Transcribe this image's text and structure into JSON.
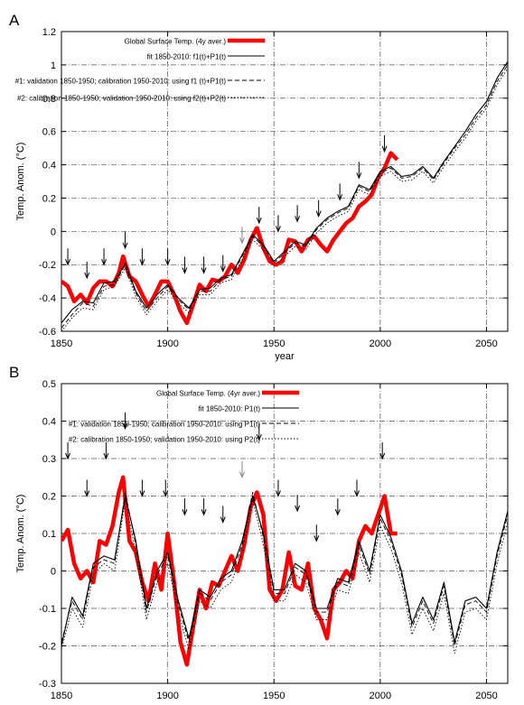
{
  "chart_data": [
    {
      "panel_label": "A",
      "type": "line",
      "xlabel": "year",
      "ylabel": "Temp. Anom. (°C)",
      "xlim": [
        1850,
        2060
      ],
      "ylim": [
        -0.6,
        1.2
      ],
      "xticks": [
        1850,
        1900,
        1950,
        2000,
        2050
      ],
      "yticks": [
        -0.6,
        -0.4,
        -0.2,
        0,
        0.2,
        0.4,
        0.6,
        0.8,
        1,
        1.2
      ],
      "ytick_labels": [
        "-0.6",
        "-0.4",
        "-0.2",
        "0",
        "0.2",
        "0.4",
        "0.6",
        "0.8",
        "1",
        "1.2"
      ],
      "grid": true,
      "legend_position": "top",
      "series": [
        {
          "name": "Global Surface Temp. (4y aver.)",
          "color": "#ff0000",
          "style": "thick",
          "x": [
            1850,
            1853,
            1856,
            1859,
            1862,
            1865,
            1868,
            1871,
            1874,
            1877,
            1879,
            1882,
            1885,
            1888,
            1891,
            1894,
            1897,
            1900,
            1903,
            1906,
            1909,
            1912,
            1915,
            1918,
            1921,
            1924,
            1927,
            1930,
            1933,
            1936,
            1939,
            1942,
            1945,
            1948,
            1951,
            1954,
            1957,
            1960,
            1963,
            1966,
            1969,
            1972,
            1975,
            1978,
            1981,
            1984,
            1987,
            1990,
            1993,
            1996,
            1999,
            2002,
            2005,
            2008
          ],
          "y": [
            -0.3,
            -0.33,
            -0.42,
            -0.38,
            -0.43,
            -0.34,
            -0.3,
            -0.3,
            -0.33,
            -0.25,
            -0.15,
            -0.27,
            -0.3,
            -0.38,
            -0.45,
            -0.38,
            -0.3,
            -0.3,
            -0.38,
            -0.48,
            -0.55,
            -0.44,
            -0.32,
            -0.36,
            -0.29,
            -0.3,
            -0.27,
            -0.2,
            -0.25,
            -0.17,
            -0.05,
            0.02,
            -0.1,
            -0.18,
            -0.2,
            -0.18,
            -0.05,
            -0.06,
            -0.12,
            -0.05,
            -0.03,
            -0.08,
            -0.12,
            -0.05,
            0.0,
            0.05,
            0.08,
            0.15,
            0.18,
            0.22,
            0.32,
            0.38,
            0.47,
            0.43
          ]
        },
        {
          "name": "fit 1850-2010: f1(t)+P1(t)",
          "color": "#000000",
          "style": "solid",
          "x": [
            1850,
            1855,
            1860,
            1865,
            1870,
            1875,
            1880,
            1885,
            1890,
            1895,
            1900,
            1905,
            1910,
            1915,
            1920,
            1925,
            1930,
            1935,
            1940,
            1945,
            1950,
            1955,
            1960,
            1965,
            1970,
            1975,
            1980,
            1985,
            1990,
            1995,
            2000,
            2005,
            2010,
            2015,
            2020,
            2025,
            2030,
            2035,
            2040,
            2045,
            2050,
            2055,
            2060
          ],
          "y": [
            -0.55,
            -0.47,
            -0.42,
            -0.43,
            -0.31,
            -0.3,
            -0.19,
            -0.36,
            -0.46,
            -0.38,
            -0.32,
            -0.4,
            -0.46,
            -0.35,
            -0.34,
            -0.28,
            -0.26,
            -0.14,
            -0.02,
            -0.08,
            -0.18,
            -0.12,
            -0.06,
            -0.08,
            0.02,
            0.08,
            0.12,
            0.15,
            0.28,
            0.25,
            0.36,
            0.39,
            0.33,
            0.34,
            0.39,
            0.32,
            0.42,
            0.51,
            0.6,
            0.7,
            0.78,
            0.92,
            1.02
          ]
        },
        {
          "name": "#1: validation 1850-1950; calibration 1950-2010: using f1 (t)+P1(t)",
          "color": "#000000",
          "style": "dashed",
          "x": [
            1850,
            1855,
            1860,
            1865,
            1870,
            1875,
            1880,
            1885,
            1890,
            1895,
            1900,
            1905,
            1910,
            1915,
            1920,
            1925,
            1930,
            1935,
            1940,
            1945,
            1950,
            1955,
            1960,
            1965,
            1970,
            1975,
            1980,
            1985,
            1990,
            1995,
            2000,
            2005,
            2010,
            2015,
            2020,
            2025,
            2030,
            2035,
            2040,
            2045,
            2050,
            2055,
            2060
          ],
          "y": [
            -0.58,
            -0.5,
            -0.43,
            -0.45,
            -0.33,
            -0.32,
            -0.2,
            -0.37,
            -0.48,
            -0.4,
            -0.33,
            -0.41,
            -0.47,
            -0.36,
            -0.36,
            -0.29,
            -0.27,
            -0.15,
            -0.03,
            -0.09,
            -0.19,
            -0.13,
            -0.07,
            -0.09,
            0.01,
            0.07,
            0.11,
            0.14,
            0.27,
            0.24,
            0.35,
            0.38,
            0.32,
            0.33,
            0.38,
            0.31,
            0.41,
            0.5,
            0.58,
            0.68,
            0.76,
            0.9,
            1.0
          ]
        },
        {
          "name": "#2: calibration 1850-1950; validation 1950-2010: using f2(t)+P2(t)",
          "color": "#000000",
          "style": "dotted",
          "x": [
            1850,
            1855,
            1860,
            1865,
            1870,
            1875,
            1880,
            1885,
            1890,
            1895,
            1900,
            1905,
            1910,
            1915,
            1920,
            1925,
            1930,
            1935,
            1940,
            1945,
            1950,
            1955,
            1960,
            1965,
            1970,
            1975,
            1980,
            1985,
            1990,
            1995,
            2000,
            2005,
            2010,
            2015,
            2020,
            2025,
            2030,
            2035,
            2040,
            2045,
            2050,
            2055,
            2060
          ],
          "y": [
            -0.6,
            -0.52,
            -0.46,
            -0.47,
            -0.35,
            -0.33,
            -0.22,
            -0.39,
            -0.5,
            -0.42,
            -0.35,
            -0.43,
            -0.49,
            -0.38,
            -0.38,
            -0.31,
            -0.29,
            -0.17,
            -0.05,
            -0.11,
            -0.21,
            -0.15,
            -0.09,
            -0.11,
            -0.01,
            0.05,
            0.09,
            0.12,
            0.25,
            0.22,
            0.33,
            0.36,
            0.3,
            0.31,
            0.36,
            0.29,
            0.39,
            0.48,
            0.56,
            0.66,
            0.74,
            0.88,
            0.98
          ]
        }
      ],
      "arrows": [
        {
          "x": 1853,
          "y": -0.2,
          "color": "#000000"
        },
        {
          "x": 1862,
          "y": -0.28,
          "color": "#000000"
        },
        {
          "x": 1870,
          "y": -0.2,
          "color": "#000000"
        },
        {
          "x": 1880,
          "y": -0.1,
          "color": "#000000"
        },
        {
          "x": 1888,
          "y": -0.2,
          "color": "#000000"
        },
        {
          "x": 1900,
          "y": -0.2,
          "color": "#000000"
        },
        {
          "x": 1908,
          "y": -0.25,
          "color": "#000000"
        },
        {
          "x": 1917,
          "y": -0.25,
          "color": "#000000"
        },
        {
          "x": 1926,
          "y": -0.24,
          "color": "#000000"
        },
        {
          "x": 1935,
          "y": -0.07,
          "color": "#888888"
        },
        {
          "x": 1943,
          "y": 0.05,
          "color": "#000000"
        },
        {
          "x": 1952,
          "y": 0.0,
          "color": "#000000"
        },
        {
          "x": 1961,
          "y": 0.06,
          "color": "#000000"
        },
        {
          "x": 1971,
          "y": 0.09,
          "color": "#000000"
        },
        {
          "x": 1981,
          "y": 0.19,
          "color": "#000000"
        },
        {
          "x": 1990,
          "y": 0.32,
          "color": "#000000"
        },
        {
          "x": 2002,
          "y": 0.48,
          "color": "#000000"
        }
      ]
    },
    {
      "panel_label": "B",
      "type": "line",
      "xlabel": "",
      "ylabel": "Temp. Anom. (°C)",
      "xlim": [
        1850,
        2060
      ],
      "ylim": [
        -0.3,
        0.5
      ],
      "xticks": [
        1850,
        1900,
        1950,
        2000,
        2050
      ],
      "yticks": [
        -0.3,
        -0.2,
        -0.1,
        0,
        0.1,
        0.2,
        0.3,
        0.4,
        0.5
      ],
      "ytick_labels": [
        "-0.3",
        "-0.2",
        "-0.1",
        "0",
        "0.1",
        "0.2",
        "0.3",
        "0.4",
        "0.5"
      ],
      "grid": true,
      "legend_position": "top",
      "series": [
        {
          "name": "Global Surface Temp. (4yr aver.)",
          "color": "#ff0000",
          "style": "thick",
          "x": [
            1850,
            1853,
            1856,
            1859,
            1862,
            1865,
            1868,
            1871,
            1874,
            1877,
            1879,
            1882,
            1885,
            1888,
            1891,
            1894,
            1897,
            1900,
            1903,
            1906,
            1909,
            1912,
            1915,
            1918,
            1921,
            1924,
            1927,
            1930,
            1933,
            1936,
            1939,
            1942,
            1945,
            1948,
            1951,
            1954,
            1957,
            1960,
            1963,
            1966,
            1969,
            1972,
            1975,
            1978,
            1981,
            1984,
            1987,
            1990,
            1993,
            1996,
            1999,
            2002,
            2005,
            2008
          ],
          "y": [
            0.08,
            0.11,
            0.02,
            -0.02,
            0.0,
            -0.03,
            0.08,
            0.07,
            0.12,
            0.21,
            0.25,
            0.08,
            0.05,
            -0.03,
            -0.08,
            0.02,
            -0.05,
            0.1,
            -0.03,
            -0.19,
            -0.25,
            -0.15,
            -0.05,
            -0.1,
            -0.03,
            -0.04,
            0.0,
            0.04,
            0.0,
            0.07,
            0.17,
            0.21,
            0.15,
            -0.05,
            -0.08,
            -0.05,
            0.05,
            -0.04,
            -0.05,
            0.02,
            -0.1,
            -0.13,
            -0.18,
            -0.05,
            -0.03,
            0.0,
            -0.02,
            0.08,
            0.12,
            0.1,
            0.15,
            0.2,
            0.1,
            0.1
          ]
        },
        {
          "name": "fit 1850-2010: P1(t)",
          "color": "#000000",
          "style": "solid",
          "x": [
            1850,
            1855,
            1860,
            1865,
            1870,
            1875,
            1880,
            1885,
            1890,
            1895,
            1900,
            1905,
            1910,
            1915,
            1920,
            1925,
            1930,
            1935,
            1940,
            1945,
            1950,
            1955,
            1960,
            1965,
            1970,
            1975,
            1980,
            1985,
            1990,
            1995,
            2000,
            2005,
            2010,
            2015,
            2020,
            2025,
            2030,
            2035,
            2040,
            2045,
            2050,
            2055,
            2060
          ],
          "y": [
            -0.2,
            -0.07,
            -0.12,
            0.02,
            0.04,
            0.03,
            0.2,
            0.08,
            -0.1,
            0.0,
            0.05,
            -0.08,
            -0.18,
            -0.05,
            -0.07,
            -0.02,
            0.0,
            0.08,
            0.2,
            0.1,
            -0.05,
            -0.05,
            0.02,
            0.0,
            -0.1,
            -0.1,
            -0.02,
            -0.03,
            0.08,
            0.0,
            0.15,
            0.09,
            0.0,
            -0.14,
            -0.07,
            -0.13,
            -0.03,
            -0.19,
            -0.08,
            -0.07,
            -0.1,
            0.05,
            0.16
          ]
        },
        {
          "name": "#1: validation 1850-1950; calibration 1950-2010: using P1(t)",
          "color": "#000000",
          "style": "dashed",
          "x": [
            1850,
            1855,
            1860,
            1865,
            1870,
            1875,
            1880,
            1885,
            1890,
            1895,
            1900,
            1905,
            1910,
            1915,
            1920,
            1925,
            1930,
            1935,
            1940,
            1945,
            1950,
            1955,
            1960,
            1965,
            1970,
            1975,
            1980,
            1985,
            1990,
            1995,
            2000,
            2005,
            2010,
            2015,
            2020,
            2025,
            2030,
            2035,
            2040,
            2045,
            2050,
            2055,
            2060
          ],
          "y": [
            -0.19,
            -0.08,
            -0.13,
            0.01,
            0.03,
            0.02,
            0.21,
            0.07,
            -0.11,
            -0.01,
            0.04,
            -0.09,
            -0.19,
            -0.06,
            -0.08,
            -0.03,
            -0.01,
            0.07,
            0.21,
            0.09,
            -0.06,
            -0.06,
            0.01,
            -0.01,
            -0.11,
            -0.11,
            -0.03,
            -0.04,
            0.07,
            -0.01,
            0.14,
            0.08,
            -0.01,
            -0.15,
            -0.08,
            -0.14,
            -0.04,
            -0.2,
            -0.09,
            -0.08,
            -0.11,
            0.04,
            0.15
          ]
        },
        {
          "name": "#2: calibration 1850-1950; validation 1950-2010: using P2(t)",
          "color": "#000000",
          "style": "dotted",
          "x": [
            1850,
            1855,
            1860,
            1865,
            1870,
            1875,
            1880,
            1885,
            1890,
            1895,
            1900,
            1905,
            1910,
            1915,
            1920,
            1925,
            1930,
            1935,
            1940,
            1945,
            1950,
            1955,
            1960,
            1965,
            1970,
            1975,
            1980,
            1985,
            1990,
            1995,
            2000,
            2005,
            2010,
            2015,
            2020,
            2025,
            2030,
            2035,
            2040,
            2045,
            2050,
            2055,
            2060
          ],
          "y": [
            -0.21,
            -0.1,
            -0.15,
            -0.01,
            0.02,
            0.0,
            0.19,
            0.05,
            -0.13,
            -0.03,
            0.02,
            -0.11,
            -0.21,
            -0.08,
            -0.1,
            -0.05,
            -0.03,
            0.05,
            0.19,
            0.07,
            -0.08,
            -0.08,
            -0.01,
            -0.03,
            -0.13,
            -0.13,
            -0.05,
            -0.06,
            0.05,
            -0.03,
            0.12,
            0.06,
            -0.03,
            -0.17,
            -0.1,
            -0.16,
            -0.06,
            -0.22,
            -0.11,
            -0.1,
            -0.13,
            0.02,
            0.13
          ]
        }
      ],
      "arrows": [
        {
          "x": 1853,
          "y": 0.3,
          "color": "#000000"
        },
        {
          "x": 1862,
          "y": 0.2,
          "color": "#000000"
        },
        {
          "x": 1871,
          "y": 0.3,
          "color": "#000000"
        },
        {
          "x": 1880,
          "y": 0.38,
          "color": "#000000"
        },
        {
          "x": 1888,
          "y": 0.2,
          "color": "#000000"
        },
        {
          "x": 1899,
          "y": 0.2,
          "color": "#000000"
        },
        {
          "x": 1908,
          "y": 0.15,
          "color": "#000000"
        },
        {
          "x": 1917,
          "y": 0.15,
          "color": "#000000"
        },
        {
          "x": 1926,
          "y": 0.13,
          "color": "#000000"
        },
        {
          "x": 1935,
          "y": 0.25,
          "color": "#888888"
        },
        {
          "x": 1943,
          "y": 0.35,
          "color": "#000000"
        },
        {
          "x": 1952,
          "y": 0.2,
          "color": "#000000"
        },
        {
          "x": 1961,
          "y": 0.16,
          "color": "#000000"
        },
        {
          "x": 1970,
          "y": 0.08,
          "color": "#000000"
        },
        {
          "x": 1980,
          "y": 0.15,
          "color": "#000000"
        },
        {
          "x": 1989,
          "y": 0.2,
          "color": "#000000"
        },
        {
          "x": 2001,
          "y": 0.3,
          "color": "#000000"
        }
      ]
    }
  ]
}
